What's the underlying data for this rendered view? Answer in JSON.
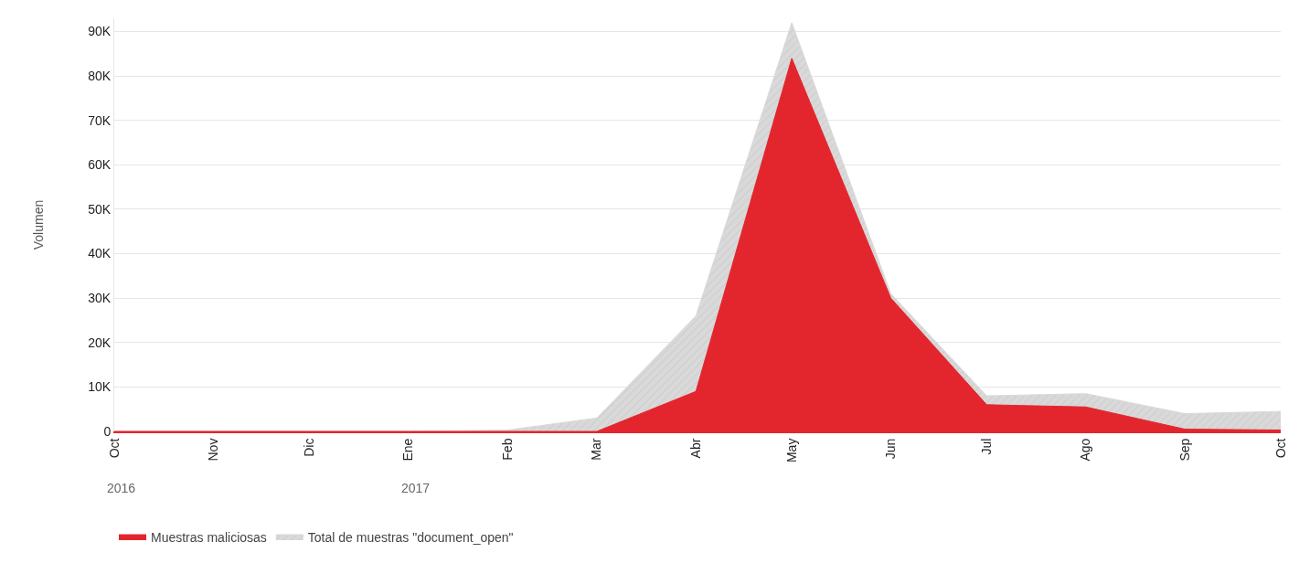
{
  "chart_data": {
    "type": "area",
    "ylabel": "Volumen",
    "x": [
      "2016-10",
      "2016-11",
      "2016-12",
      "2017-01",
      "2017-02",
      "2017-03",
      "2017-04",
      "2017-05",
      "2017-06",
      "2017-07",
      "2017-08",
      "2017-09",
      "2017-10"
    ],
    "series": [
      {
        "name": "Total de muestras \"document_open\"",
        "color": "#d9d9d9",
        "values": [
          0,
          0,
          0,
          0,
          300,
          3000,
          26000,
          92000,
          31000,
          8000,
          8500,
          4000,
          4500
        ]
      },
      {
        "name": "Muestras maliciosas",
        "color": "#e3262d",
        "values": [
          0,
          0,
          0,
          0,
          0,
          0,
          9000,
          84000,
          30000,
          6000,
          5500,
          500,
          300
        ]
      }
    ],
    "xlim": [
      "2016-10-01",
      "2017-10-01"
    ],
    "annotations": [
      "2016",
      "2017"
    ],
    "xticks": [
      {
        "value": "2016-10",
        "label": "Oct"
      },
      {
        "value": "2016-11",
        "label": "Nov"
      },
      {
        "value": "2016-12",
        "label": "Dic"
      },
      {
        "value": "2017-01",
        "label": "Ene"
      },
      {
        "value": "2017-02",
        "label": "Feb"
      },
      {
        "value": "2017-03",
        "label": "Mar"
      },
      {
        "value": "2017-04",
        "label": "Abr"
      },
      {
        "value": "2017-05",
        "label": "May"
      },
      {
        "value": "2017-06",
        "label": "Jun"
      },
      {
        "value": "2017-07",
        "label": "Jul"
      },
      {
        "value": "2017-08",
        "label": "Ago"
      },
      {
        "value": "2017-09",
        "label": "Sep"
      },
      {
        "value": "2017-10",
        "label": "Oct"
      }
    ],
    "ylim": [
      0,
      93000
    ],
    "yticks": [
      0,
      {
        "value": 10000,
        "label": "10K"
      },
      {
        "value": 20000,
        "label": "20K"
      },
      {
        "value": 30000,
        "label": "30K"
      },
      {
        "value": 40000,
        "label": "40K"
      },
      {
        "value": 50000,
        "label": "50K"
      },
      {
        "value": 60000,
        "label": "60K"
      },
      {
        "value": 70000,
        "label": "70K"
      },
      {
        "value": 80000,
        "label": "80K"
      },
      {
        "value": 90000,
        "label": "90K"
      }
    ],
    "grid": "y",
    "legend": "bottom left"
  }
}
